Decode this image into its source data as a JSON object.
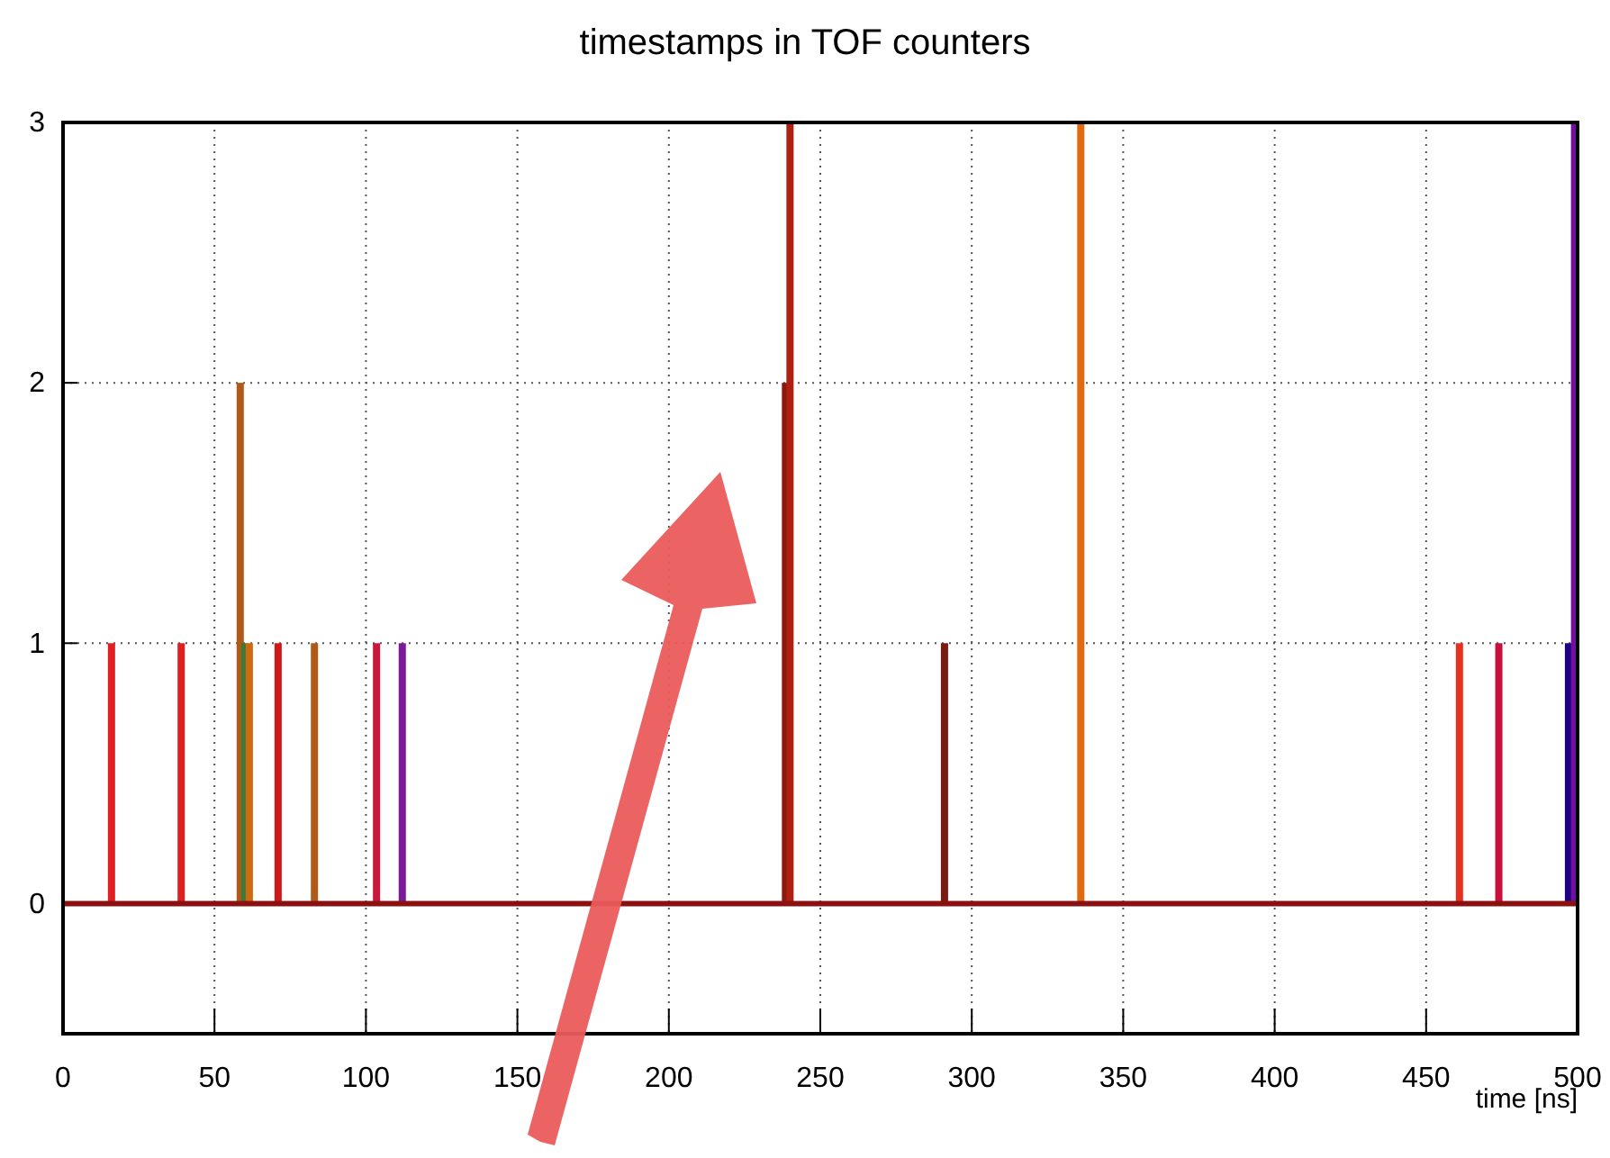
{
  "chart_data": {
    "type": "bar",
    "title": "timestamps in TOF counters",
    "xlabel": "time [ns]",
    "x": [
      16,
      39,
      58.5,
      60,
      61.5,
      71,
      83,
      103.5,
      112,
      238.5,
      240,
      291,
      336,
      461,
      474,
      497,
      499
    ],
    "values": [
      1,
      1,
      2,
      1,
      1,
      1,
      1,
      1,
      1,
      2,
      3,
      1,
      3,
      1,
      1,
      1,
      3
    ],
    "colors": [
      "#e02020",
      "#e02020",
      "#b05a1a",
      "#3c7a3c",
      "#d06a10",
      "#d01818",
      "#b05a1a",
      "#c8183c",
      "#7a1a9a",
      "#8a1a10",
      "#b02010",
      "#7a1a10",
      "#e06a10",
      "#e83020",
      "#c8103c",
      "#200080",
      "#7010a0"
    ],
    "xlim": [
      0,
      500
    ],
    "ylim": [
      -0.5,
      3
    ],
    "xticks": [
      0,
      50,
      100,
      150,
      200,
      250,
      300,
      350,
      400,
      450,
      500
    ],
    "yticks": [
      0,
      1,
      2,
      3
    ],
    "ref_lines": [
      {
        "axis": "y",
        "value": 0,
        "color": "#8b1010"
      }
    ],
    "grid": true
  }
}
